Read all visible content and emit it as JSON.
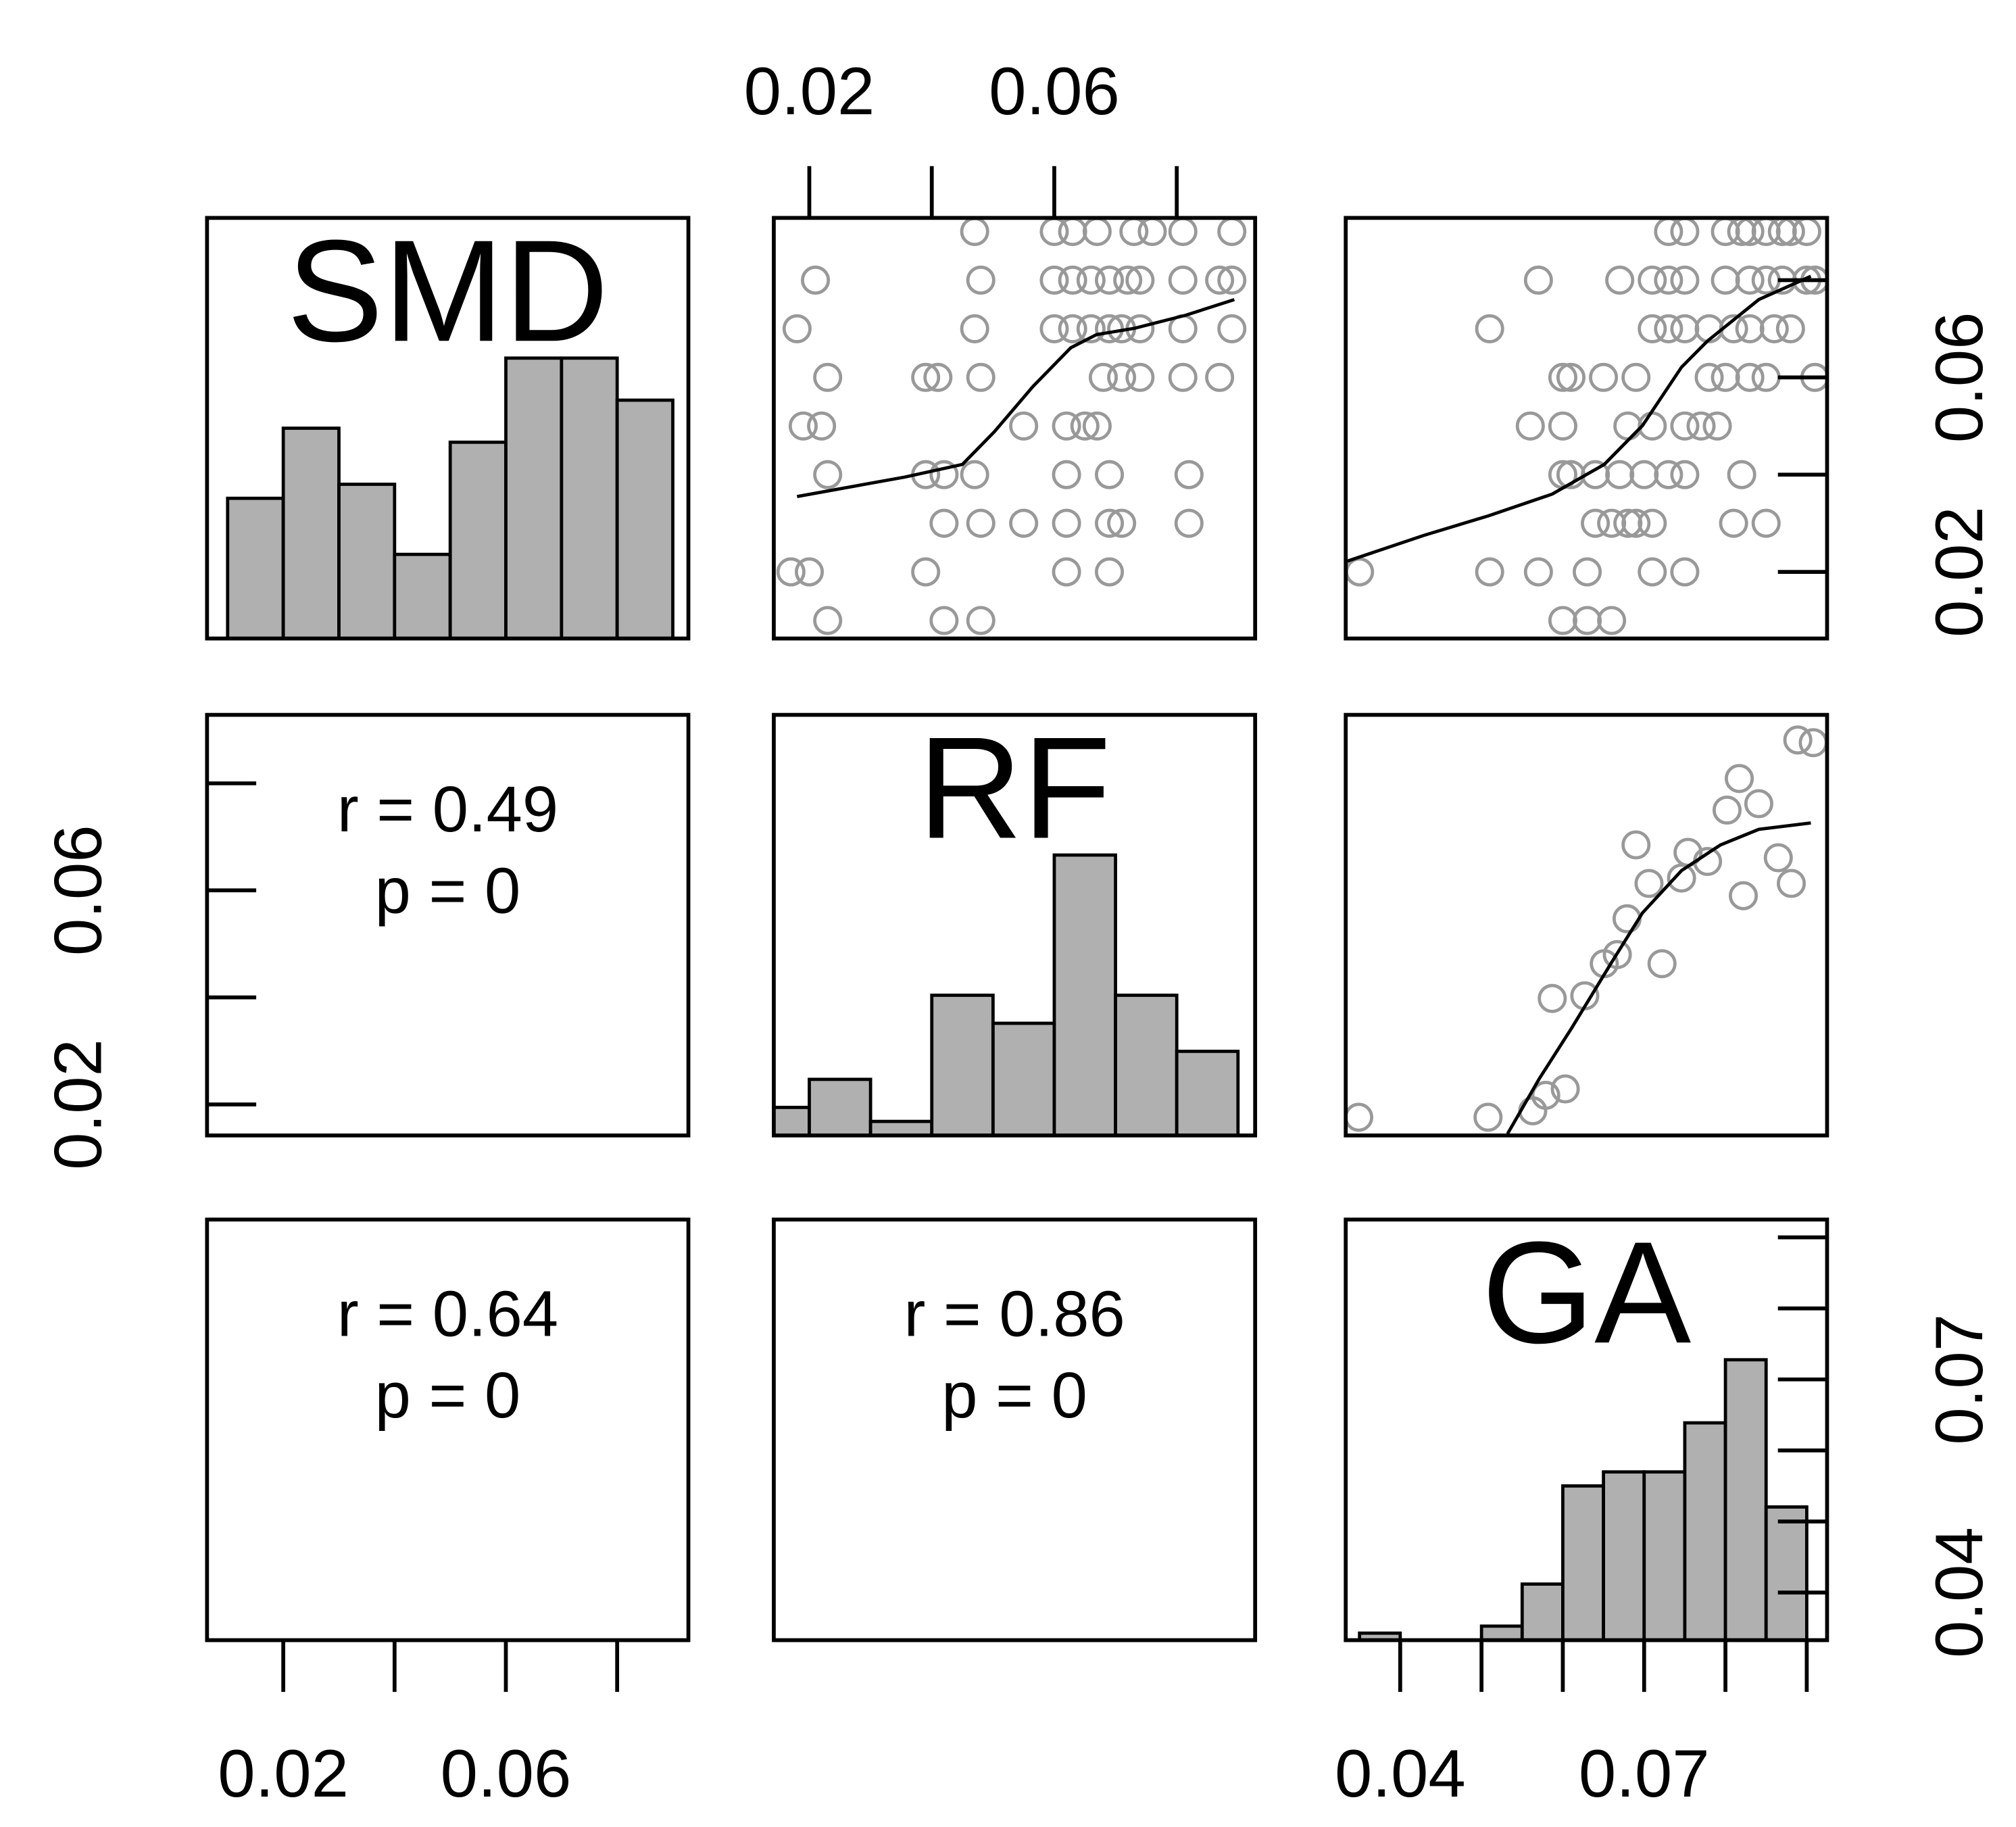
{
  "chart_data": {
    "type": "pairs",
    "hist_color": "#b0b0b0",
    "point_color": "#999999",
    "smooth_color": "#000000",
    "variables": [
      {
        "name": "SMD",
        "lim": [
          0.0063,
          0.0928
        ],
        "ticks": [
          0.02,
          0.04,
          0.06,
          0.08
        ],
        "tick_labeled": [
          true,
          false,
          true,
          false
        ]
      },
      {
        "name": "RF",
        "lim": [
          0.0142,
          0.0928
        ],
        "ticks": [
          0.02,
          0.04,
          0.06,
          0.08
        ],
        "tick_labeled": [
          true,
          false,
          true,
          false
        ]
      },
      {
        "name": "GA",
        "lim": [
          0.0333,
          0.0925
        ],
        "ticks": [
          0.04,
          0.05,
          0.06,
          0.07,
          0.08,
          0.09
        ],
        "tick_labeled": [
          true,
          false,
          false,
          true,
          false,
          false
        ]
      }
    ],
    "histograms": [
      {
        "bins": [
          0.01,
          0.02,
          0.03,
          0.04,
          0.05,
          0.06,
          0.07,
          0.08,
          0.09
        ],
        "counts": [
          10,
          15,
          11,
          6,
          14,
          20,
          20,
          17
        ]
      },
      {
        "bins": [
          0.01,
          0.02,
          0.03,
          0.04,
          0.05,
          0.06,
          0.07,
          0.08,
          0.09
        ],
        "counts": [
          2,
          4,
          1,
          10,
          8,
          20,
          10,
          6
        ]
      },
      {
        "bins": [
          0.035,
          0.04,
          0.045,
          0.05,
          0.055,
          0.06,
          0.065,
          0.07,
          0.075,
          0.08,
          0.085,
          0.09
        ],
        "counts": [
          1,
          0,
          0,
          2,
          8,
          22,
          24,
          24,
          31,
          40,
          19
        ]
      }
    ],
    "scatter": [
      {
        "x": [
          0.047,
          0.06,
          0.063,
          0.067,
          0.073,
          0.076,
          0.081,
          0.089,
          0.021,
          0.048,
          0.06,
          0.063,
          0.066,
          0.069,
          0.072,
          0.074,
          0.081,
          0.087,
          0.089,
          0.018,
          0.047,
          0.06,
          0.063,
          0.066,
          0.069,
          0.071,
          0.074,
          0.081,
          0.089,
          0.023,
          0.039,
          0.041,
          0.048,
          0.068,
          0.071,
          0.074,
          0.081,
          0.087,
          0.019,
          0.022,
          0.055,
          0.062,
          0.065,
          0.067,
          0.023,
          0.039,
          0.042,
          0.047,
          0.062,
          0.069,
          0.082,
          0.042,
          0.048,
          0.055,
          0.062,
          0.069,
          0.071,
          0.082,
          0.017,
          0.02,
          0.039,
          0.062,
          0.069,
          0.023,
          0.042,
          0.048
        ],
        "y": [
          0.09,
          0.09,
          0.09,
          0.09,
          0.09,
          0.09,
          0.09,
          0.09,
          0.08,
          0.08,
          0.08,
          0.08,
          0.08,
          0.08,
          0.08,
          0.08,
          0.08,
          0.08,
          0.08,
          0.07,
          0.07,
          0.07,
          0.07,
          0.07,
          0.07,
          0.07,
          0.07,
          0.07,
          0.07,
          0.06,
          0.06,
          0.06,
          0.06,
          0.06,
          0.06,
          0.06,
          0.06,
          0.06,
          0.05,
          0.05,
          0.05,
          0.05,
          0.05,
          0.05,
          0.04,
          0.04,
          0.04,
          0.04,
          0.04,
          0.04,
          0.04,
          0.03,
          0.03,
          0.03,
          0.03,
          0.03,
          0.03,
          0.03,
          0.02,
          0.02,
          0.02,
          0.02,
          0.02,
          0.01,
          0.01,
          0.01
        ],
        "smooth_x": [
          0.018,
          0.0356,
          0.045,
          0.0502,
          0.0565,
          0.0627,
          0.0669,
          0.0731,
          0.0815,
          0.0894
        ],
        "smooth_y": [
          0.0355,
          0.0395,
          0.0421,
          0.0488,
          0.0581,
          0.0661,
          0.0688,
          0.0701,
          0.0728,
          0.076
        ]
      },
      {
        "x": [
          0.073,
          0.075,
          0.08,
          0.082,
          0.083,
          0.085,
          0.087,
          0.088,
          0.09,
          0.057,
          0.067,
          0.071,
          0.073,
          0.075,
          0.08,
          0.083,
          0.085,
          0.087,
          0.09,
          0.091,
          0.051,
          0.071,
          0.073,
          0.075,
          0.078,
          0.081,
          0.083,
          0.086,
          0.088,
          0.06,
          0.061,
          0.065,
          0.069,
          0.078,
          0.08,
          0.083,
          0.085,
          0.091,
          0.056,
          0.06,
          0.068,
          0.071,
          0.075,
          0.077,
          0.079,
          0.06,
          0.061,
          0.064,
          0.067,
          0.07,
          0.073,
          0.075,
          0.082,
          0.064,
          0.066,
          0.068,
          0.069,
          0.071,
          0.081,
          0.085,
          0.035,
          0.051,
          0.057,
          0.063,
          0.071,
          0.075,
          0.06,
          0.063,
          0.066
        ],
        "y": [
          0.09,
          0.09,
          0.09,
          0.09,
          0.09,
          0.09,
          0.09,
          0.09,
          0.09,
          0.08,
          0.08,
          0.08,
          0.08,
          0.08,
          0.08,
          0.08,
          0.08,
          0.08,
          0.08,
          0.08,
          0.07,
          0.07,
          0.07,
          0.07,
          0.07,
          0.07,
          0.07,
          0.07,
          0.07,
          0.06,
          0.06,
          0.06,
          0.06,
          0.06,
          0.06,
          0.06,
          0.06,
          0.06,
          0.05,
          0.05,
          0.05,
          0.05,
          0.05,
          0.05,
          0.05,
          0.04,
          0.04,
          0.04,
          0.04,
          0.04,
          0.04,
          0.04,
          0.04,
          0.03,
          0.03,
          0.03,
          0.03,
          0.03,
          0.03,
          0.03,
          0.02,
          0.02,
          0.02,
          0.02,
          0.02,
          0.02,
          0.01,
          0.01,
          0.01
        ],
        "smooth_x": [
          0.0333,
          0.0429,
          0.0508,
          0.0587,
          0.0651,
          0.0698,
          0.0746,
          0.0778,
          0.0841,
          0.0905
        ],
        "smooth_y": [
          0.0221,
          0.0275,
          0.0315,
          0.036,
          0.0421,
          0.0501,
          0.0621,
          0.0675,
          0.076,
          0.0808
        ]
      },
      {
        "x": [
          0.0349,
          0.0508,
          0.0563,
          0.0579,
          0.0603,
          0.0587,
          0.0627,
          0.0651,
          0.0667,
          0.0679,
          0.0722,
          0.069,
          0.0706,
          0.0746,
          0.0754,
          0.0778,
          0.0802,
          0.0817,
          0.0841,
          0.0822,
          0.0865,
          0.0881,
          0.0889,
          0.0908
        ],
        "y": [
          0.0176,
          0.0176,
          0.0188,
          0.0217,
          0.0229,
          0.0398,
          0.0403,
          0.0463,
          0.048,
          0.0547,
          0.0463,
          0.0685,
          0.0613,
          0.0623,
          0.0671,
          0.0654,
          0.075,
          0.0809,
          0.0762,
          0.059,
          0.0661,
          0.0613,
          0.0881,
          0.0876
        ],
        "smooth_x": [
          0.0532,
          0.0571,
          0.0611,
          0.0659,
          0.0698,
          0.0746,
          0.0794,
          0.0841,
          0.0905
        ],
        "smooth_y": [
          0.0145,
          0.0248,
          0.0343,
          0.0463,
          0.0558,
          0.0637,
          0.0685,
          0.0714,
          0.0726
        ]
      }
    ],
    "correlations": {
      "values": [
        0.49,
        0.64,
        0.86
      ],
      "value_labels": [
        "r = 0.49",
        "r = 0.64",
        "r = 0.86"
      ],
      "p_values": [
        0,
        0,
        0
      ],
      "p_labels": [
        "p = 0",
        "p = 0",
        "p = 0"
      ]
    }
  }
}
